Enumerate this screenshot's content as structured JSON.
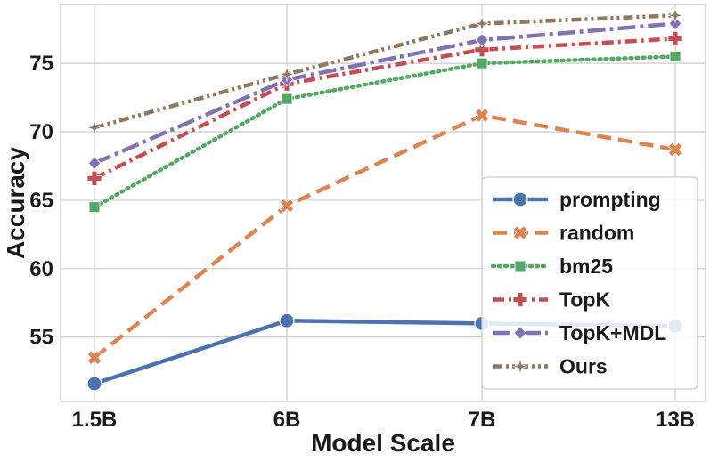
{
  "chart_data": {
    "type": "line",
    "title": "",
    "xlabel": "Model Scale",
    "ylabel": "Accuracy",
    "categories": [
      "1.5B",
      "6B",
      "7B",
      "13B"
    ],
    "ylim": [
      50.3,
      79.3
    ],
    "yticks": [
      55,
      60,
      65,
      70,
      75
    ],
    "grid": true,
    "legend_position": "lower-right",
    "series": [
      {
        "name": "prompting",
        "values": [
          51.6,
          56.2,
          56.0,
          55.8
        ],
        "color": "#4c72b0",
        "marker": "circle",
        "dash": "solid"
      },
      {
        "name": "random",
        "values": [
          53.5,
          64.6,
          71.2,
          68.7
        ],
        "color": "#dd8452",
        "marker": "x",
        "dash": "dashed"
      },
      {
        "name": "bm25",
        "values": [
          64.5,
          72.4,
          75.0,
          75.5
        ],
        "color": "#55a868",
        "marker": "square",
        "dash": "dotted"
      },
      {
        "name": "TopK",
        "values": [
          66.6,
          73.5,
          76.0,
          76.8
        ],
        "color": "#c44e52",
        "marker": "plus",
        "dash": "dashdot"
      },
      {
        "name": "TopK+MDL",
        "values": [
          67.7,
          73.8,
          76.7,
          77.9
        ],
        "color": "#8172b3",
        "marker": "diamond",
        "dash": "longdashdot"
      },
      {
        "name": "Ours",
        "values": [
          70.3,
          74.2,
          77.9,
          78.5
        ],
        "color": "#937860",
        "marker": "star",
        "dash": "dashdotdot"
      }
    ]
  }
}
